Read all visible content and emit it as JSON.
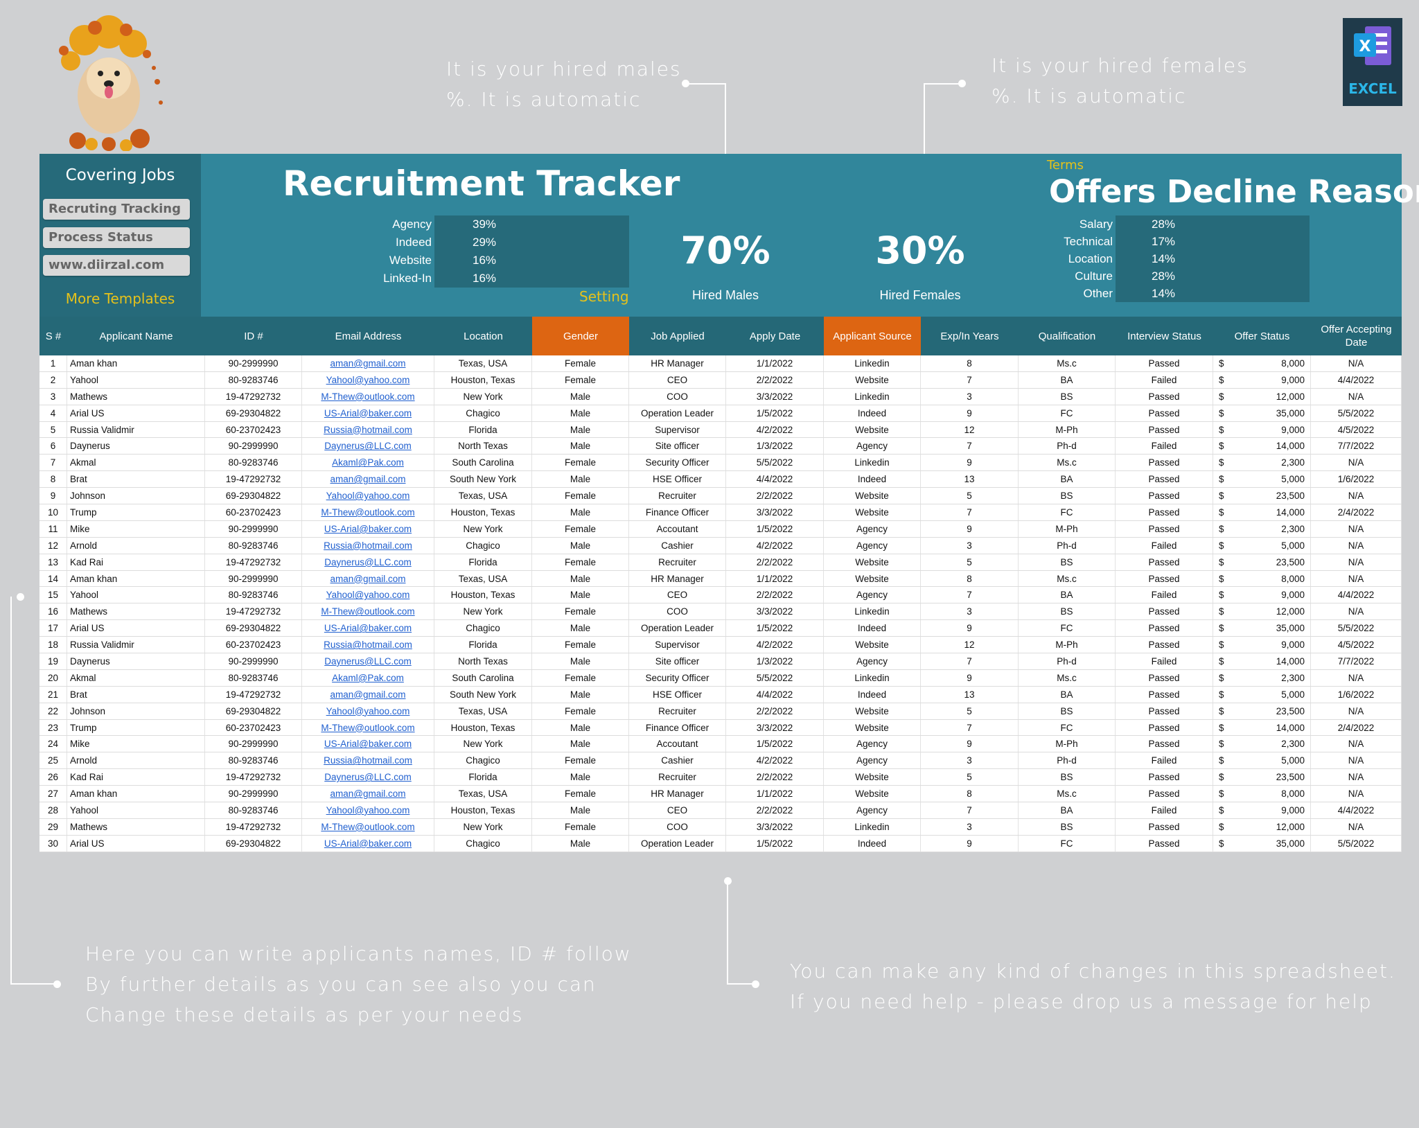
{
  "annotations": {
    "males_note": [
      "It is your hired males",
      "%. It is automatic"
    ],
    "females_note": [
      "It is your hired females",
      "%. It is automatic"
    ],
    "bottom_left": [
      "Here you can write applicants names, ID # follow",
      "By further details as you can see also you can",
      "Change these details as per your needs"
    ],
    "bottom_right": [
      "You can make any kind of changes in this spreadsheet.",
      "If you need help - please drop us a message for help"
    ]
  },
  "excel_badge": {
    "label": "EXCEL",
    "icon": "excel-logo-icon",
    "color": "#2bb6e8"
  },
  "sidebar": {
    "title": "Covering Jobs",
    "buttons": [
      "Recruting Tracking",
      "Process Status",
      "www.diirzal.com"
    ],
    "more": "More Templates"
  },
  "header": {
    "title": "Recruitment Tracker",
    "sources": [
      {
        "label": "Agency",
        "value": "39%"
      },
      {
        "label": "Indeed",
        "value": "29%"
      },
      {
        "label": "Website",
        "value": "16%"
      },
      {
        "label": "Linked-In",
        "value": "16%"
      }
    ],
    "setting": "Setting",
    "hired_males": {
      "value": "70%",
      "label": "Hired Males"
    },
    "hired_females": {
      "value": "30%",
      "label": "Hired Females"
    },
    "terms": "Terms",
    "decline_title": "Offers Decline Reasons",
    "decline": [
      {
        "label": "Salary",
        "value": "28%"
      },
      {
        "label": "Technical",
        "value": "17%"
      },
      {
        "label": "Location",
        "value": "14%"
      },
      {
        "label": "Culture",
        "value": "28%"
      },
      {
        "label": "Other",
        "value": "14%"
      }
    ]
  },
  "colors": {
    "teal": "#31869b",
    "dark_teal": "#266a7a",
    "orange": "#dd6512",
    "yellow": "#e6c21a",
    "link": "#1f5fcf"
  },
  "table": {
    "columns": [
      "S #",
      "Applicant Name",
      "ID #",
      "Email Address",
      "Location",
      "Gender",
      "Job Applied",
      "Apply Date",
      "Applicant Source",
      "Exp/In Years",
      "Qualification",
      "Interview Status",
      "Offer Status",
      "Offer Accepting Date"
    ],
    "highlighted_columns": [
      "Gender",
      "Applicant Source"
    ],
    "rows": [
      [
        "1",
        "Aman khan",
        "90-2999990",
        "aman@gmail.com",
        "Texas, USA",
        "Female",
        "HR Manager",
        "1/1/2022",
        "Linkedin",
        "8",
        "Ms.c",
        "Passed",
        "$",
        "8,000",
        "N/A"
      ],
      [
        "2",
        "Yahool",
        "80-9283746",
        "Yahool@yahoo.com",
        "Houston, Texas",
        "Female",
        "CEO",
        "2/2/2022",
        "Website",
        "7",
        "BA",
        "Failed",
        "$",
        "9,000",
        "4/4/2022"
      ],
      [
        "3",
        "Mathews",
        "19-47292732",
        "M-Thew@outlook.com",
        "New York",
        "Male",
        "COO",
        "3/3/2022",
        "Linkedin",
        "3",
        "BS",
        "Passed",
        "$",
        "12,000",
        "N/A"
      ],
      [
        "4",
        "Arial US",
        "69-29304822",
        "US-Arial@baker.com",
        "Chagico",
        "Male",
        "Operation Leader",
        "1/5/2022",
        "Indeed",
        "9",
        "FC",
        "Passed",
        "$",
        "35,000",
        "5/5/2022"
      ],
      [
        "5",
        "Russia Validmir",
        "60-23702423",
        "Russia@hotmail.com",
        "Florida",
        "Male",
        "Supervisor",
        "4/2/2022",
        "Website",
        "12",
        "M-Ph",
        "Passed",
        "$",
        "9,000",
        "4/5/2022"
      ],
      [
        "6",
        "Daynerus",
        "90-2999990",
        "Daynerus@LLC.com",
        "North Texas",
        "Male",
        "Site officer",
        "1/3/2022",
        "Agency",
        "7",
        "Ph-d",
        "Failed",
        "$",
        "14,000",
        "7/7/2022"
      ],
      [
        "7",
        "Akmal",
        "80-9283746",
        "Akaml@Pak.com",
        "South Carolina",
        "Female",
        "Security Officer",
        "5/5/2022",
        "Linkedin",
        "9",
        "Ms.c",
        "Passed",
        "$",
        "2,300",
        "N/A"
      ],
      [
        "8",
        "Brat",
        "19-47292732",
        "aman@gmail.com",
        "South New York",
        "Male",
        "HSE Officer",
        "4/4/2022",
        "Indeed",
        "13",
        "BA",
        "Passed",
        "$",
        "5,000",
        "1/6/2022"
      ],
      [
        "9",
        "Johnson",
        "69-29304822",
        "Yahool@yahoo.com",
        "Texas, USA",
        "Female",
        "Recruiter",
        "2/2/2022",
        "Website",
        "5",
        "BS",
        "Passed",
        "$",
        "23,500",
        "N/A"
      ],
      [
        "10",
        "Trump",
        "60-23702423",
        "M-Thew@outlook.com",
        "Houston, Texas",
        "Male",
        "Finance Officer",
        "3/3/2022",
        "Website",
        "7",
        "FC",
        "Passed",
        "$",
        "14,000",
        "2/4/2022"
      ],
      [
        "11",
        "Mike",
        "90-2999990",
        "US-Arial@baker.com",
        "New York",
        "Female",
        "Accoutant",
        "1/5/2022",
        "Agency",
        "9",
        "M-Ph",
        "Passed",
        "$",
        "2,300",
        "N/A"
      ],
      [
        "12",
        "Arnold",
        "80-9283746",
        "Russia@hotmail.com",
        "Chagico",
        "Male",
        "Cashier",
        "4/2/2022",
        "Agency",
        "3",
        "Ph-d",
        "Failed",
        "$",
        "5,000",
        "N/A"
      ],
      [
        "13",
        "Kad Rai",
        "19-47292732",
        "Daynerus@LLC.com",
        "Florida",
        "Female",
        "Recruiter",
        "2/2/2022",
        "Website",
        "5",
        "BS",
        "Passed",
        "$",
        "23,500",
        "N/A"
      ],
      [
        "14",
        "Aman khan",
        "90-2999990",
        "aman@gmail.com",
        "Texas, USA",
        "Male",
        "HR Manager",
        "1/1/2022",
        "Website",
        "8",
        "Ms.c",
        "Passed",
        "$",
        "8,000",
        "N/A"
      ],
      [
        "15",
        "Yahool",
        "80-9283746",
        "Yahool@yahoo.com",
        "Houston, Texas",
        "Male",
        "CEO",
        "2/2/2022",
        "Agency",
        "7",
        "BA",
        "Failed",
        "$",
        "9,000",
        "4/4/2022"
      ],
      [
        "16",
        "Mathews",
        "19-47292732",
        "M-Thew@outlook.com",
        "New York",
        "Female",
        "COO",
        "3/3/2022",
        "Linkedin",
        "3",
        "BS",
        "Passed",
        "$",
        "12,000",
        "N/A"
      ],
      [
        "17",
        "Arial US",
        "69-29304822",
        "US-Arial@baker.com",
        "Chagico",
        "Male",
        "Operation Leader",
        "1/5/2022",
        "Indeed",
        "9",
        "FC",
        "Passed",
        "$",
        "35,000",
        "5/5/2022"
      ],
      [
        "18",
        "Russia Validmir",
        "60-23702423",
        "Russia@hotmail.com",
        "Florida",
        "Female",
        "Supervisor",
        "4/2/2022",
        "Website",
        "12",
        "M-Ph",
        "Passed",
        "$",
        "9,000",
        "4/5/2022"
      ],
      [
        "19",
        "Daynerus",
        "90-2999990",
        "Daynerus@LLC.com",
        "North Texas",
        "Male",
        "Site officer",
        "1/3/2022",
        "Agency",
        "7",
        "Ph-d",
        "Failed",
        "$",
        "14,000",
        "7/7/2022"
      ],
      [
        "20",
        "Akmal",
        "80-9283746",
        "Akaml@Pak.com",
        "South Carolina",
        "Female",
        "Security Officer",
        "5/5/2022",
        "Linkedin",
        "9",
        "Ms.c",
        "Passed",
        "$",
        "2,300",
        "N/A"
      ],
      [
        "21",
        "Brat",
        "19-47292732",
        "aman@gmail.com",
        "South New York",
        "Male",
        "HSE Officer",
        "4/4/2022",
        "Indeed",
        "13",
        "BA",
        "Passed",
        "$",
        "5,000",
        "1/6/2022"
      ],
      [
        "22",
        "Johnson",
        "69-29304822",
        "Yahool@yahoo.com",
        "Texas, USA",
        "Female",
        "Recruiter",
        "2/2/2022",
        "Website",
        "5",
        "BS",
        "Passed",
        "$",
        "23,500",
        "N/A"
      ],
      [
        "23",
        "Trump",
        "60-23702423",
        "M-Thew@outlook.com",
        "Houston, Texas",
        "Male",
        "Finance Officer",
        "3/3/2022",
        "Website",
        "7",
        "FC",
        "Passed",
        "$",
        "14,000",
        "2/4/2022"
      ],
      [
        "24",
        "Mike",
        "90-2999990",
        "US-Arial@baker.com",
        "New York",
        "Male",
        "Accoutant",
        "1/5/2022",
        "Agency",
        "9",
        "M-Ph",
        "Passed",
        "$",
        "2,300",
        "N/A"
      ],
      [
        "25",
        "Arnold",
        "80-9283746",
        "Russia@hotmail.com",
        "Chagico",
        "Female",
        "Cashier",
        "4/2/2022",
        "Agency",
        "3",
        "Ph-d",
        "Failed",
        "$",
        "5,000",
        "N/A"
      ],
      [
        "26",
        "Kad Rai",
        "19-47292732",
        "Daynerus@LLC.com",
        "Florida",
        "Male",
        "Recruiter",
        "2/2/2022",
        "Website",
        "5",
        "BS",
        "Passed",
        "$",
        "23,500",
        "N/A"
      ],
      [
        "27",
        "Aman khan",
        "90-2999990",
        "aman@gmail.com",
        "Texas, USA",
        "Female",
        "HR Manager",
        "1/1/2022",
        "Website",
        "8",
        "Ms.c",
        "Passed",
        "$",
        "8,000",
        "N/A"
      ],
      [
        "28",
        "Yahool",
        "80-9283746",
        "Yahool@yahoo.com",
        "Houston, Texas",
        "Male",
        "CEO",
        "2/2/2022",
        "Agency",
        "7",
        "BA",
        "Failed",
        "$",
        "9,000",
        "4/4/2022"
      ],
      [
        "29",
        "Mathews",
        "19-47292732",
        "M-Thew@outlook.com",
        "New York",
        "Female",
        "COO",
        "3/3/2022",
        "Linkedin",
        "3",
        "BS",
        "Passed",
        "$",
        "12,000",
        "N/A"
      ],
      [
        "30",
        "Arial US",
        "69-29304822",
        "US-Arial@baker.com",
        "Chagico",
        "Male",
        "Operation Leader",
        "1/5/2022",
        "Indeed",
        "9",
        "FC",
        "Passed",
        "$",
        "35,000",
        "5/5/2022"
      ]
    ]
  }
}
